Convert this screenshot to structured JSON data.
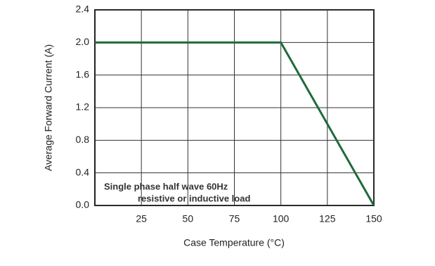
{
  "chart_data": {
    "type": "line",
    "y_label": "Average Forward Current (A)",
    "x_label": "Case Temperature (°C)",
    "annotations": [
      "Single phase half wave 60Hz",
      "resistive or inductive load"
    ],
    "x": [
      0,
      100,
      150
    ],
    "values": [
      2.0,
      2.0,
      0.0
    ],
    "color": "#1e6b3c",
    "xlim": [
      0,
      150
    ],
    "xticks": [
      25,
      50,
      75,
      100,
      125,
      150
    ],
    "ylim": [
      0,
      2.4
    ],
    "yticks": [
      {
        "value": 0,
        "label": "0.0"
      },
      0.4,
      0.8,
      1.2,
      1.6,
      {
        "value": 2,
        "label": "2.0"
      },
      2.4
    ],
    "grid": true
  }
}
